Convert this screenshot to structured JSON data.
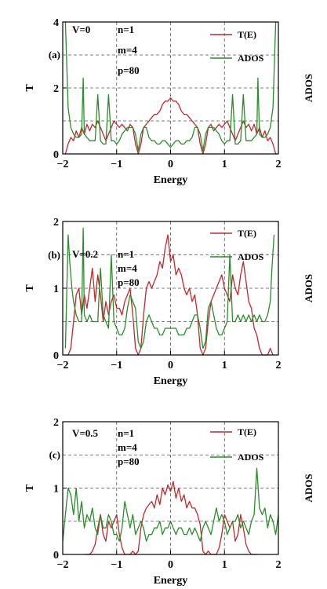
{
  "colors": {
    "transmission": "#c0282d",
    "ados": "#2a8c2a",
    "grid": "#555555",
    "axis": "#000000"
  },
  "chart_data": [
    {
      "type": "line",
      "panel_label": "(a)",
      "params": [
        "V=0",
        "n=1",
        "m=4",
        "p=80"
      ],
      "xlabel": "Energy",
      "ylabel": "T",
      "y2label": "ADOS",
      "xlim": [
        -2,
        2
      ],
      "ylim": [
        0,
        4
      ],
      "xticks": [
        -2,
        -1,
        0,
        1,
        2
      ],
      "xtick_labels": [
        "−2",
        "−1",
        "0",
        "1",
        "2"
      ],
      "yticks": [
        0,
        2,
        4
      ],
      "ytick_labels": [
        "0",
        "2",
        "4"
      ],
      "grid_y": [
        1,
        2,
        3
      ],
      "grid": true,
      "legend": "top-right",
      "series": [
        {
          "name": "T(E)",
          "color": "#c0282d",
          "x": [
            -1.95,
            -1.9,
            -1.85,
            -1.8,
            -1.75,
            -1.7,
            -1.65,
            -1.6,
            -1.55,
            -1.5,
            -1.45,
            -1.4,
            -1.35,
            -1.3,
            -1.25,
            -1.2,
            -1.15,
            -1.1,
            -1.05,
            -1.0,
            -0.95,
            -0.9,
            -0.85,
            -0.8,
            -0.75,
            -0.7,
            -0.65,
            -0.6,
            -0.55,
            -0.5,
            -0.45,
            -0.4,
            -0.35,
            -0.3,
            -0.25,
            -0.2,
            -0.15,
            -0.1,
            -0.05,
            0.0,
            0.05,
            0.1,
            0.15,
            0.2,
            0.25,
            0.3,
            0.35,
            0.4,
            0.45,
            0.5,
            0.55,
            0.6,
            0.65,
            0.7,
            0.75,
            0.8,
            0.85,
            0.9,
            0.95,
            1.0,
            1.05,
            1.1,
            1.15,
            1.2,
            1.25,
            1.3,
            1.35,
            1.4,
            1.45,
            1.5,
            1.55,
            1.6,
            1.65,
            1.7,
            1.75,
            1.8,
            1.85,
            1.9,
            1.95
          ],
          "y": [
            0.0,
            0.3,
            0.5,
            0.4,
            0.7,
            0.5,
            0.8,
            0.6,
            0.9,
            0.7,
            0.9,
            0.8,
            1.0,
            0.8,
            0.6,
            0.4,
            0.6,
            0.8,
            1.0,
            0.9,
            0.8,
            0.9,
            0.8,
            0.7,
            0.9,
            0.8,
            0.3,
            0.0,
            0.3,
            0.8,
            0.9,
            1.0,
            1.1,
            1.2,
            1.2,
            1.3,
            1.5,
            1.6,
            1.6,
            1.7,
            1.6,
            1.6,
            1.5,
            1.3,
            1.2,
            1.2,
            1.1,
            1.0,
            0.9,
            0.8,
            0.3,
            0.0,
            0.3,
            0.8,
            0.9,
            0.7,
            0.8,
            0.9,
            0.8,
            0.9,
            1.0,
            0.8,
            0.6,
            0.4,
            0.6,
            0.8,
            1.0,
            0.8,
            0.9,
            0.7,
            0.9,
            0.6,
            0.8,
            0.5,
            0.7,
            0.4,
            0.5,
            0.3,
            0.0
          ]
        },
        {
          "name": "ADOS",
          "color": "#2a8c2a",
          "x": [
            -1.95,
            -1.9,
            -1.85,
            -1.8,
            -1.75,
            -1.7,
            -1.65,
            -1.62,
            -1.6,
            -1.55,
            -1.5,
            -1.45,
            -1.4,
            -1.35,
            -1.3,
            -1.25,
            -1.2,
            -1.15,
            -1.1,
            -1.05,
            -1.0,
            -0.95,
            -0.9,
            -0.85,
            -0.8,
            -0.75,
            -0.7,
            -0.65,
            -0.6,
            -0.55,
            -0.5,
            -0.45,
            -0.4,
            -0.35,
            -0.3,
            -0.25,
            -0.2,
            -0.15,
            -0.1,
            -0.05,
            0.0,
            0.05,
            0.1,
            0.15,
            0.2,
            0.25,
            0.3,
            0.35,
            0.4,
            0.45,
            0.5,
            0.55,
            0.6,
            0.65,
            0.7,
            0.75,
            0.8,
            0.85,
            0.9,
            0.95,
            1.0,
            1.05,
            1.1,
            1.15,
            1.2,
            1.25,
            1.3,
            1.35,
            1.4,
            1.45,
            1.5,
            1.55,
            1.6,
            1.62,
            1.65,
            1.7,
            1.75,
            1.8,
            1.85,
            1.9,
            1.95
          ],
          "y": [
            4.0,
            1.4,
            0.8,
            0.6,
            0.5,
            0.5,
            0.6,
            2.3,
            0.6,
            0.5,
            0.4,
            0.4,
            0.4,
            1.8,
            0.4,
            0.3,
            0.3,
            1.8,
            0.4,
            0.4,
            0.3,
            0.4,
            0.6,
            0.7,
            0.8,
            0.8,
            0.8,
            0.6,
            0.1,
            0.6,
            0.8,
            0.8,
            0.5,
            0.4,
            0.4,
            0.3,
            0.3,
            0.4,
            0.4,
            0.3,
            0.2,
            0.3,
            0.4,
            0.4,
            0.3,
            0.3,
            0.4,
            0.4,
            0.5,
            0.8,
            0.8,
            0.6,
            0.1,
            0.6,
            0.8,
            0.8,
            0.8,
            0.7,
            0.6,
            0.4,
            0.3,
            0.4,
            0.4,
            1.8,
            0.3,
            0.3,
            0.4,
            1.8,
            0.4,
            0.4,
            0.4,
            0.5,
            0.6,
            2.3,
            0.6,
            0.5,
            0.5,
            0.6,
            0.8,
            1.4,
            4.0
          ]
        }
      ]
    },
    {
      "type": "line",
      "panel_label": "(b)",
      "params": [
        "V=0.2",
        "n=1",
        "m=4",
        "p=80"
      ],
      "xlabel": "Energy",
      "ylabel": "T",
      "y2label": "ADOS",
      "xlim": [
        -2,
        2
      ],
      "ylim": [
        0,
        2
      ],
      "xticks": [
        -2,
        -1,
        0,
        1,
        2
      ],
      "xtick_labels": [
        "−2",
        "−1",
        "0",
        "1",
        "2"
      ],
      "yticks": [
        0,
        1,
        2
      ],
      "ytick_labels": [
        "0",
        "1",
        "2"
      ],
      "grid_y": [
        0.5,
        1,
        1.5
      ],
      "grid": true,
      "legend": "top-right",
      "series": [
        {
          "name": "T(E)",
          "color": "#c0282d",
          "x": [
            -1.95,
            -1.9,
            -1.85,
            -1.8,
            -1.75,
            -1.7,
            -1.65,
            -1.6,
            -1.55,
            -1.5,
            -1.45,
            -1.4,
            -1.35,
            -1.3,
            -1.25,
            -1.2,
            -1.15,
            -1.1,
            -1.05,
            -1.0,
            -0.95,
            -0.9,
            -0.85,
            -0.8,
            -0.75,
            -0.7,
            -0.65,
            -0.6,
            -0.55,
            -0.5,
            -0.45,
            -0.4,
            -0.35,
            -0.3,
            -0.25,
            -0.2,
            -0.15,
            -0.1,
            -0.05,
            0.0,
            0.05,
            0.1,
            0.15,
            0.2,
            0.25,
            0.3,
            0.35,
            0.4,
            0.45,
            0.5,
            0.55,
            0.6,
            0.65,
            0.7,
            0.75,
            0.8,
            0.85,
            0.9,
            0.95,
            1.0,
            1.05,
            1.1,
            1.15,
            1.2,
            1.25,
            1.3,
            1.35,
            1.4,
            1.45,
            1.5,
            1.55,
            1.6,
            1.65,
            1.7,
            1.75,
            1.8,
            1.85,
            1.9
          ],
          "y": [
            0.0,
            0.0,
            0.1,
            0.5,
            0.9,
            1.0,
            0.6,
            0.9,
            0.7,
            1.0,
            1.3,
            0.8,
            1.2,
            0.9,
            0.5,
            0.8,
            0.6,
            0.8,
            0.9,
            0.7,
            0.7,
            0.6,
            0.8,
            0.9,
            1.0,
            0.6,
            0.1,
            0.0,
            0.1,
            0.6,
            1.0,
            1.1,
            1.0,
            1.1,
            1.2,
            1.4,
            1.3,
            1.6,
            1.8,
            1.4,
            1.5,
            1.2,
            1.3,
            1.2,
            1.0,
            0.9,
            1.0,
            0.8,
            0.9,
            0.6,
            0.1,
            0.0,
            0.1,
            0.5,
            0.8,
            0.9,
            1.0,
            1.1,
            1.2,
            1.0,
            0.9,
            0.8,
            1.2,
            1.0,
            0.9,
            1.2,
            1.4,
            1.1,
            0.8,
            0.7,
            0.4,
            0.3,
            0.1,
            0.0,
            0.0,
            0.0,
            0.1,
            0.0
          ]
        },
        {
          "name": "ADOS",
          "color": "#2a8c2a",
          "x": [
            -1.95,
            -1.9,
            -1.87,
            -1.83,
            -1.8,
            -1.75,
            -1.7,
            -1.65,
            -1.62,
            -1.6,
            -1.55,
            -1.5,
            -1.45,
            -1.4,
            -1.35,
            -1.3,
            -1.25,
            -1.2,
            -1.15,
            -1.1,
            -1.05,
            -1.0,
            -0.95,
            -0.9,
            -0.85,
            -0.8,
            -0.75,
            -0.7,
            -0.65,
            -0.6,
            -0.55,
            -0.5,
            -0.45,
            -0.4,
            -0.35,
            -0.3,
            -0.25,
            -0.2,
            -0.15,
            -0.1,
            -0.05,
            0.0,
            0.05,
            0.1,
            0.15,
            0.2,
            0.25,
            0.3,
            0.35,
            0.4,
            0.45,
            0.5,
            0.55,
            0.6,
            0.65,
            0.7,
            0.75,
            0.8,
            0.85,
            0.9,
            0.95,
            1.0,
            1.05,
            1.1,
            1.15,
            1.2,
            1.25,
            1.3,
            1.35,
            1.4,
            1.45,
            1.5,
            1.55,
            1.6,
            1.65,
            1.7,
            1.75,
            1.8,
            1.85,
            1.88,
            1.92
          ],
          "y": [
            0.1,
            1.8,
            1.4,
            1.0,
            0.8,
            0.6,
            0.5,
            0.5,
            1.9,
            0.6,
            0.5,
            0.6,
            0.5,
            0.5,
            0.5,
            1.3,
            0.6,
            0.5,
            0.4,
            1.5,
            0.5,
            0.4,
            0.3,
            0.3,
            0.4,
            0.7,
            0.9,
            0.8,
            0.7,
            0.2,
            0.1,
            0.2,
            0.5,
            0.6,
            0.5,
            0.4,
            0.4,
            0.3,
            0.3,
            0.4,
            0.4,
            0.4,
            0.4,
            0.4,
            0.3,
            0.3,
            0.3,
            0.4,
            0.4,
            0.5,
            0.6,
            0.6,
            0.4,
            0.1,
            0.2,
            0.7,
            0.8,
            0.6,
            0.4,
            0.3,
            0.3,
            0.4,
            0.5,
            1.5,
            0.5,
            0.5,
            0.6,
            0.5,
            0.6,
            0.5,
            0.6,
            0.5,
            0.6,
            0.5,
            0.6,
            0.5,
            0.5,
            0.6,
            0.8,
            1.3,
            1.8
          ]
        }
      ]
    },
    {
      "type": "line",
      "panel_label": "(c)",
      "params": [
        "V=0.5",
        "n=1",
        "m=4",
        "p=80"
      ],
      "xlabel": "Energy",
      "ylabel": "T",
      "y2label": "ADOS",
      "xlim": [
        -2,
        2
      ],
      "ylim": [
        0,
        2
      ],
      "xticks": [
        -2,
        -1,
        0,
        1,
        2
      ],
      "xtick_labels": [
        "−2",
        "−1",
        "0",
        "1",
        "2"
      ],
      "yticks": [
        0,
        1,
        2
      ],
      "ytick_labels": [
        "0",
        "1",
        "2"
      ],
      "grid_y": [
        0.5,
        1,
        1.5
      ],
      "grid": true,
      "legend": "top-right",
      "series": [
        {
          "name": "T(E)",
          "color": "#c0282d",
          "x": [
            -1.6,
            -1.5,
            -1.45,
            -1.4,
            -1.35,
            -1.3,
            -1.25,
            -1.2,
            -1.15,
            -1.1,
            -1.05,
            -1.0,
            -0.95,
            -0.9,
            -0.85,
            -0.8,
            -0.75,
            -0.7,
            -0.65,
            -0.6,
            -0.55,
            -0.5,
            -0.45,
            -0.4,
            -0.35,
            -0.3,
            -0.25,
            -0.2,
            -0.15,
            -0.1,
            -0.05,
            0.0,
            0.05,
            0.1,
            0.15,
            0.2,
            0.25,
            0.3,
            0.35,
            0.4,
            0.45,
            0.5,
            0.55,
            0.6,
            0.65,
            0.7,
            0.75,
            0.8,
            0.85,
            0.9,
            0.95,
            1.0,
            1.05,
            1.1,
            1.15,
            1.2,
            1.25,
            1.3,
            1.35,
            1.4,
            1.45,
            1.5,
            1.55,
            1.6
          ],
          "y": [
            0.0,
            0.0,
            0.05,
            0.15,
            0.4,
            0.6,
            0.3,
            0.2,
            0.5,
            0.4,
            0.5,
            0.6,
            0.3,
            0.1,
            0.0,
            0.0,
            0.0,
            0.05,
            0.0,
            0.05,
            0.4,
            0.6,
            0.7,
            0.75,
            0.8,
            0.7,
            0.9,
            0.75,
            1.0,
            0.9,
            1.05,
            0.95,
            1.1,
            0.85,
            1.0,
            0.8,
            0.9,
            0.7,
            0.8,
            0.7,
            0.7,
            0.6,
            0.45,
            0.05,
            0.0,
            0.05,
            0.0,
            0.0,
            0.0,
            0.1,
            0.3,
            0.6,
            0.5,
            0.4,
            0.5,
            0.2,
            0.3,
            0.6,
            0.4,
            0.15,
            0.05,
            0.0,
            0.0,
            0.0
          ]
        },
        {
          "name": "ADOS",
          "color": "#2a8c2a",
          "x": [
            -2.0,
            -1.95,
            -1.9,
            -1.85,
            -1.8,
            -1.75,
            -1.7,
            -1.65,
            -1.6,
            -1.55,
            -1.5,
            -1.45,
            -1.4,
            -1.35,
            -1.3,
            -1.25,
            -1.2,
            -1.15,
            -1.1,
            -1.05,
            -1.0,
            -0.95,
            -0.9,
            -0.85,
            -0.8,
            -0.75,
            -0.7,
            -0.65,
            -0.6,
            -0.55,
            -0.5,
            -0.45,
            -0.4,
            -0.35,
            -0.3,
            -0.25,
            -0.2,
            -0.15,
            -0.1,
            -0.05,
            0.0,
            0.05,
            0.1,
            0.15,
            0.2,
            0.25,
            0.3,
            0.35,
            0.4,
            0.45,
            0.5,
            0.55,
            0.6,
            0.65,
            0.7,
            0.75,
            0.8,
            0.85,
            0.9,
            0.95,
            1.0,
            1.05,
            1.1,
            1.15,
            1.2,
            1.25,
            1.3,
            1.35,
            1.4,
            1.45,
            1.5,
            1.55,
            1.6,
            1.65,
            1.7,
            1.75,
            1.8,
            1.85,
            1.9,
            1.95,
            2.0
          ],
          "y": [
            0.2,
            0.6,
            1.0,
            0.9,
            0.6,
            1.0,
            0.5,
            0.8,
            0.4,
            0.6,
            0.5,
            0.7,
            0.4,
            0.3,
            0.6,
            0.4,
            0.4,
            0.6,
            0.5,
            0.3,
            0.3,
            0.2,
            0.4,
            0.8,
            0.6,
            0.4,
            0.6,
            0.3,
            0.4,
            0.5,
            0.4,
            0.2,
            0.3,
            0.3,
            0.4,
            0.4,
            0.5,
            0.3,
            0.4,
            0.4,
            0.5,
            0.4,
            0.3,
            0.4,
            0.4,
            0.3,
            0.3,
            0.4,
            0.3,
            0.4,
            0.3,
            0.2,
            0.4,
            0.5,
            0.4,
            0.3,
            0.5,
            0.7,
            0.5,
            0.6,
            0.5,
            0.3,
            0.4,
            0.5,
            0.5,
            0.6,
            0.4,
            0.5,
            0.4,
            0.3,
            0.5,
            0.6,
            1.3,
            0.7,
            0.6,
            0.7,
            0.4,
            0.6,
            0.5,
            0.3,
            0.6
          ]
        }
      ]
    }
  ]
}
